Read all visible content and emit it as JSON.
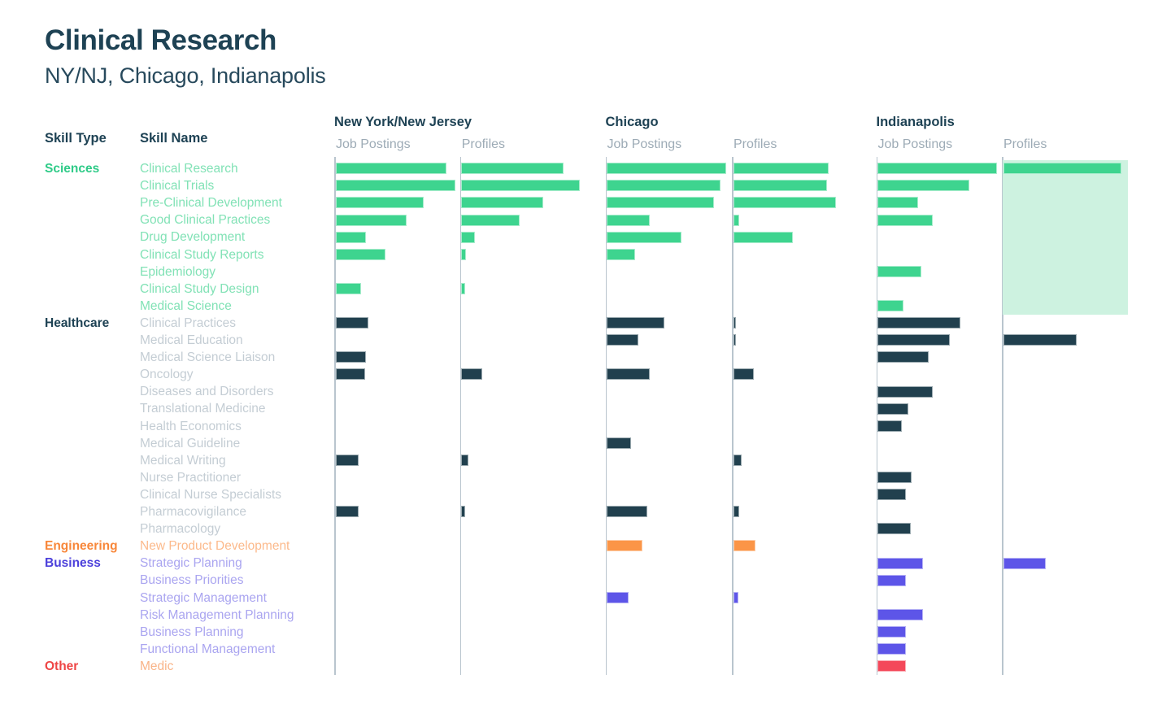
{
  "title": "Clinical Research",
  "subtitle": "NY/NJ, Chicago, Indianapolis",
  "columns": {
    "skill_type_header": "Skill Type",
    "skill_name_header": "Skill Name",
    "regions": [
      {
        "name": "New York/New Jersey",
        "metrics": [
          "Job Postings",
          "Profiles"
        ]
      },
      {
        "name": "Chicago",
        "metrics": [
          "Job Postings",
          "Profiles"
        ]
      },
      {
        "name": "Indianapolis",
        "metrics": [
          "Job Postings",
          "Profiles"
        ]
      }
    ]
  },
  "chart_data": {
    "type": "bar",
    "orientation": "horizontal",
    "value_unit": "percent_of_column_width",
    "value_range": [
      0,
      100
    ],
    "metric_columns": [
      "ny_nj_job_postings",
      "ny_nj_profiles",
      "chicago_job_postings",
      "chicago_profiles",
      "indianapolis_job_postings",
      "indianapolis_profiles"
    ],
    "grid": "off",
    "axis_ticks": "none",
    "highlight": {
      "region": "Indianapolis",
      "metric": "Profiles",
      "skill_type": "Sciences",
      "color": "#cdf2e0"
    },
    "groups": [
      {
        "skill_type": "Sciences",
        "type_color": "#2fcb88",
        "skill_color": "#82e2b6",
        "bar_color": "#3ed48f",
        "skills": [
          {
            "name": "Clinical Research",
            "values": [
              91,
              84,
              98,
              78,
              98,
              97
            ]
          },
          {
            "name": "Clinical Trials",
            "values": [
              98,
              97,
              93,
              77,
              75,
              0
            ]
          },
          {
            "name": "Pre-Clinical Development",
            "values": [
              72,
              67,
              88,
              84,
              33,
              0
            ]
          },
          {
            "name": "Good Clinical Practices",
            "values": [
              58,
              48,
              35,
              5,
              45,
              0
            ]
          },
          {
            "name": "Drug Development",
            "values": [
              25,
              11,
              61,
              49,
              0,
              0
            ]
          },
          {
            "name": "Clinical Study Reports",
            "values": [
              41,
              4,
              23,
              0,
              0,
              0
            ]
          },
          {
            "name": "Epidemiology",
            "values": [
              0,
              0,
              0,
              0,
              36,
              0
            ]
          },
          {
            "name": "Clinical Study Design",
            "values": [
              21,
              3,
              0,
              0,
              0,
              0
            ]
          },
          {
            "name": "Medical Science",
            "values": [
              0,
              0,
              0,
              0,
              21,
              0
            ]
          }
        ]
      },
      {
        "skill_type": "Healthcare",
        "type_color": "#1e4254",
        "skill_color": "#c4cdd4",
        "bar_color": "#21404e",
        "skills": [
          {
            "name": "Clinical Practices",
            "values": [
              27,
              0,
              47,
              2,
              68,
              0
            ]
          },
          {
            "name": "Medical Education",
            "values": [
              0,
              0,
              26,
              2,
              59,
              60
            ]
          },
          {
            "name": "Medical Science Liaison",
            "values": [
              25,
              0,
              0,
              0,
              42,
              0
            ]
          },
          {
            "name": "Oncology",
            "values": [
              24,
              17,
              35,
              17,
              0,
              0
            ]
          },
          {
            "name": "Diseases and Disorders",
            "values": [
              0,
              0,
              0,
              0,
              45,
              0
            ]
          },
          {
            "name": "Translational Medicine",
            "values": [
              0,
              0,
              0,
              0,
              25,
              0
            ]
          },
          {
            "name": "Health Economics",
            "values": [
              0,
              0,
              0,
              0,
              20,
              0
            ]
          },
          {
            "name": "Medical Guideline",
            "values": [
              0,
              0,
              20,
              0,
              0,
              0
            ]
          },
          {
            "name": "Medical Writing",
            "values": [
              19,
              6,
              0,
              7,
              0,
              0
            ]
          },
          {
            "name": "Nurse Practitioner",
            "values": [
              0,
              0,
              0,
              0,
              28,
              0
            ]
          },
          {
            "name": "Clinical Nurse Specialists",
            "values": [
              0,
              0,
              0,
              0,
              23,
              0
            ]
          },
          {
            "name": "Pharmacovigilance",
            "values": [
              19,
              3,
              33,
              5,
              0,
              0
            ]
          },
          {
            "name": "Pharmacology",
            "values": [
              0,
              0,
              0,
              0,
              27,
              0
            ]
          }
        ]
      },
      {
        "skill_type": "Engineering",
        "type_color": "#f8873a",
        "skill_color": "#fcba8c",
        "bar_color": "#fb9547",
        "skills": [
          {
            "name": "New Product Development",
            "values": [
              0,
              0,
              29,
              18,
              0,
              0
            ]
          }
        ]
      },
      {
        "skill_type": "Business",
        "type_color": "#4c40db",
        "skill_color": "#aaa5f0",
        "bar_color": "#5d55e8",
        "skills": [
          {
            "name": "Strategic Planning",
            "values": [
              0,
              0,
              0,
              0,
              37,
              35
            ]
          },
          {
            "name": "Business Priorities",
            "values": [
              0,
              0,
              0,
              0,
              23,
              0
            ]
          },
          {
            "name": "Strategic Management",
            "values": [
              0,
              0,
              18,
              4,
              0,
              0
            ]
          },
          {
            "name": "Risk Management Planning",
            "values": [
              0,
              0,
              0,
              0,
              37,
              0
            ]
          },
          {
            "name": "Business Planning",
            "values": [
              0,
              0,
              0,
              0,
              23,
              0
            ]
          },
          {
            "name": "Functional Management",
            "values": [
              0,
              0,
              0,
              0,
              23,
              0
            ]
          }
        ]
      },
      {
        "skill_type": "Other",
        "type_color": "#ee4545",
        "skill_color": "#f9b488",
        "bar_color": "#f4485a",
        "skills": [
          {
            "name": "Medic",
            "values": [
              0,
              0,
              0,
              0,
              23,
              0
            ]
          }
        ]
      }
    ]
  }
}
